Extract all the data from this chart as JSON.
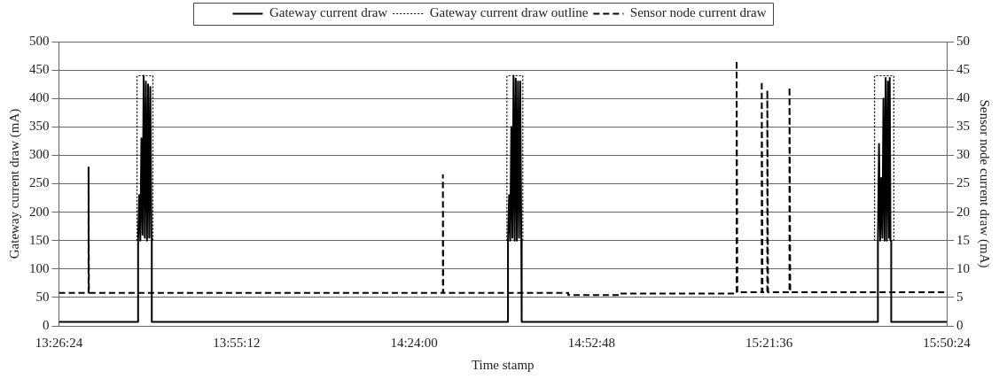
{
  "chart_data": {
    "type": "line",
    "xlabel": "Time stamp",
    "ylabel": "Gateway current draw (mA)",
    "y2label": "Sensor node current draw (mA)",
    "xlim": [
      13.44,
      15.84
    ],
    "xticks": [
      {
        "value": 13.44,
        "label": "13:26:24"
      },
      {
        "value": 13.92,
        "label": "13:55:12"
      },
      {
        "value": 14.4,
        "label": "14:24:00"
      },
      {
        "value": 14.88,
        "label": "14:52:48"
      },
      {
        "value": 15.36,
        "label": "15:21:36"
      },
      {
        "value": 15.84,
        "label": "15:50:24"
      }
    ],
    "ylim": [
      0,
      500
    ],
    "yticks": [
      0,
      50,
      100,
      150,
      200,
      250,
      300,
      350,
      400,
      450,
      500
    ],
    "y2lim": [
      0,
      50
    ],
    "y2ticks": [
      0,
      5,
      10,
      15,
      20,
      25,
      30,
      35,
      40,
      45,
      50
    ],
    "grid": "y",
    "legend": "top",
    "marker": "none",
    "series": [
      {
        "name": "Gateway current draw",
        "color": "#000000",
        "line_style": "solid",
        "x": [
          13.44,
          13.654,
          13.654,
          13.657,
          13.66,
          13.663,
          13.666,
          13.669,
          13.672,
          13.675,
          13.678,
          13.681,
          13.684,
          13.687,
          13.69,
          13.691,
          13.691,
          14.654,
          14.654,
          14.657,
          14.66,
          14.663,
          14.666,
          14.669,
          14.672,
          14.675,
          14.678,
          14.681,
          14.684,
          14.687,
          14.69,
          14.691,
          14.691,
          15.654,
          15.654,
          15.657,
          15.66,
          15.663,
          15.666,
          15.669,
          15.672,
          15.675,
          15.678,
          15.681,
          15.684,
          15.686,
          15.688,
          15.69,
          15.69,
          15.84
        ],
        "values": [
          7,
          7,
          150,
          230,
          150,
          330,
          160,
          440,
          155,
          430,
          150,
          425,
          155,
          420,
          155,
          155,
          7,
          7,
          150,
          230,
          150,
          350,
          155,
          440,
          150,
          435,
          150,
          430,
          155,
          430,
          150,
          150,
          7,
          7,
          150,
          320,
          150,
          260,
          155,
          400,
          150,
          436,
          150,
          430,
          155,
          436,
          150,
          150,
          7,
          7
        ]
      },
      {
        "name": "Gateway current draw outline",
        "color": "#000000",
        "line_style": "dotted",
        "x": [
          13.651,
          13.651,
          13.694,
          13.694,
          13.7,
          14.651,
          14.651,
          14.694,
          14.694,
          14.7,
          15.645,
          15.645,
          15.697,
          15.697
        ],
        "values": [
          150,
          440,
          440,
          150,
          null,
          150,
          440,
          440,
          150,
          null,
          150,
          440,
          440,
          150
        ]
      },
      {
        "name": "Sensor node current draw",
        "color": "#000000",
        "line_style": "dashed",
        "axis": "y2",
        "x": [
          13.44,
          13.52,
          13.52,
          13.521,
          14.478,
          14.478,
          14.479,
          14.817,
          14.817,
          14.955,
          14.955,
          15.272,
          15.272,
          15.274,
          15.34,
          15.34,
          15.342,
          15.355,
          15.355,
          15.357,
          15.415,
          15.415,
          15.417,
          15.84
        ],
        "values": [
          5.8,
          5.8,
          28,
          5.8,
          5.8,
          26.5,
          5.8,
          5.8,
          5.4,
          5.4,
          5.7,
          5.7,
          46.7,
          5.9,
          5.9,
          43,
          5.9,
          5.9,
          41.5,
          5.9,
          5.9,
          42,
          5.9,
          5.9
        ]
      }
    ]
  }
}
